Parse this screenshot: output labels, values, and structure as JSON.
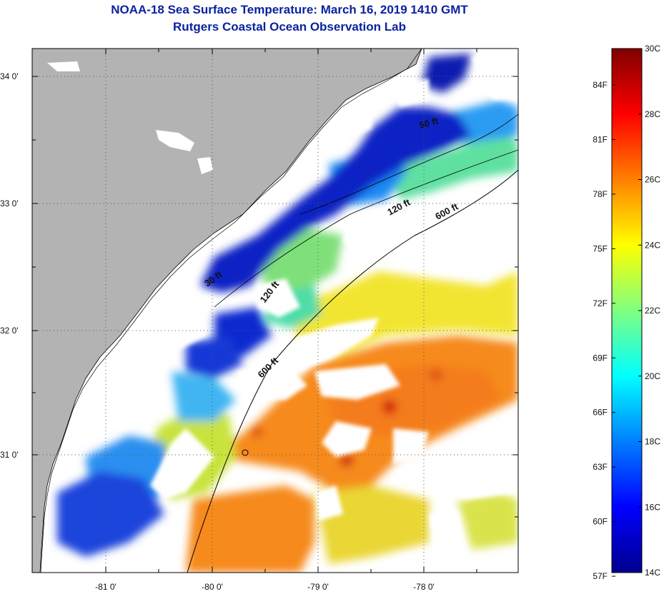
{
  "header": {
    "title": "NOAA-18 Sea Surface Temperature:  March 16, 2019 1410 GMT",
    "subtitle": "Rutgers Coastal Ocean Observation Lab"
  },
  "map": {
    "lat_ticks": [
      "34 0'",
      "33 0'",
      "32 0'",
      "31 0'"
    ],
    "lon_ticks": [
      "-81 0'",
      "-80 0'",
      "-79 0'",
      "-78 0'"
    ],
    "isobath_labels": [
      "50 ft",
      "120 ft",
      "600 ft",
      "30 ft",
      "120 ft",
      "600 ft"
    ],
    "colors": {
      "land": "#b3b3b3",
      "cloud": "#ffffff",
      "coastline": "#000000"
    }
  },
  "colorbar": {
    "fahrenheit_labels": [
      "84F",
      "81F",
      "78F",
      "75F",
      "72F",
      "69F",
      "66F",
      "63F",
      "60F",
      "57F"
    ],
    "celsius_labels": [
      "30C",
      "28C",
      "26C",
      "24C",
      "22C",
      "20C",
      "18C",
      "16C",
      "14C"
    ],
    "range_c": [
      14,
      30
    ],
    "colormap": "jet"
  }
}
